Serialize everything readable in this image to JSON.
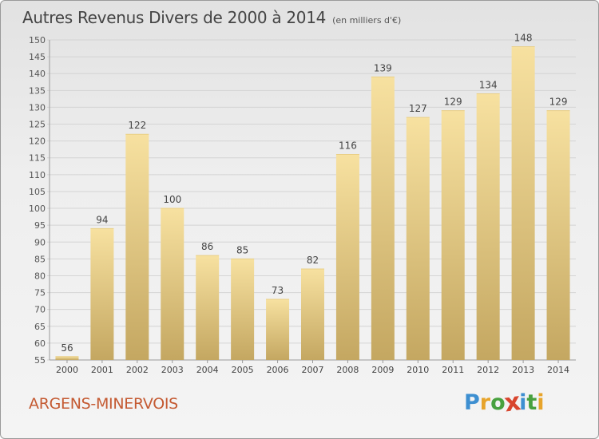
{
  "title": "Autres Revenus Divers de 2000 à 2014",
  "title_unit": "(en milliers d'€)",
  "commune": "ARGENS-MINERVOIS",
  "logo": {
    "text": "Proxiti",
    "letters": [
      "P",
      "r",
      "o",
      "x",
      "i",
      "t",
      "i"
    ],
    "colors": [
      "#3d8fd1",
      "#e7a42b",
      "#48a13f",
      "#d8452e",
      "#3d8fd1",
      "#48a13f",
      "#e7a42b"
    ]
  },
  "colors": {
    "commune_text": "#c45a32",
    "bar_top": "#f7e1a0",
    "bar_bottom": "#c4a761",
    "grid": "#d4d4d4"
  },
  "chart_data": {
    "type": "bar",
    "categories": [
      "2000",
      "2001",
      "2002",
      "2003",
      "2004",
      "2005",
      "2006",
      "2007",
      "2008",
      "2009",
      "2010",
      "2011",
      "2012",
      "2013",
      "2014"
    ],
    "values": [
      56,
      94,
      122,
      100,
      86,
      85,
      73,
      82,
      116,
      139,
      127,
      129,
      134,
      148,
      129
    ],
    "data_labels": [
      "56",
      "94",
      "122",
      "100",
      "86",
      "85",
      "73",
      "82",
      "116",
      "139",
      "127",
      "129",
      "134",
      "148",
      "129"
    ],
    "ylim": [
      55,
      150
    ],
    "yticks": [
      55,
      60,
      65,
      70,
      75,
      80,
      85,
      90,
      95,
      100,
      105,
      110,
      115,
      120,
      125,
      130,
      135,
      140,
      145,
      150
    ],
    "grid": true,
    "xlabel": "",
    "ylabel": ""
  }
}
